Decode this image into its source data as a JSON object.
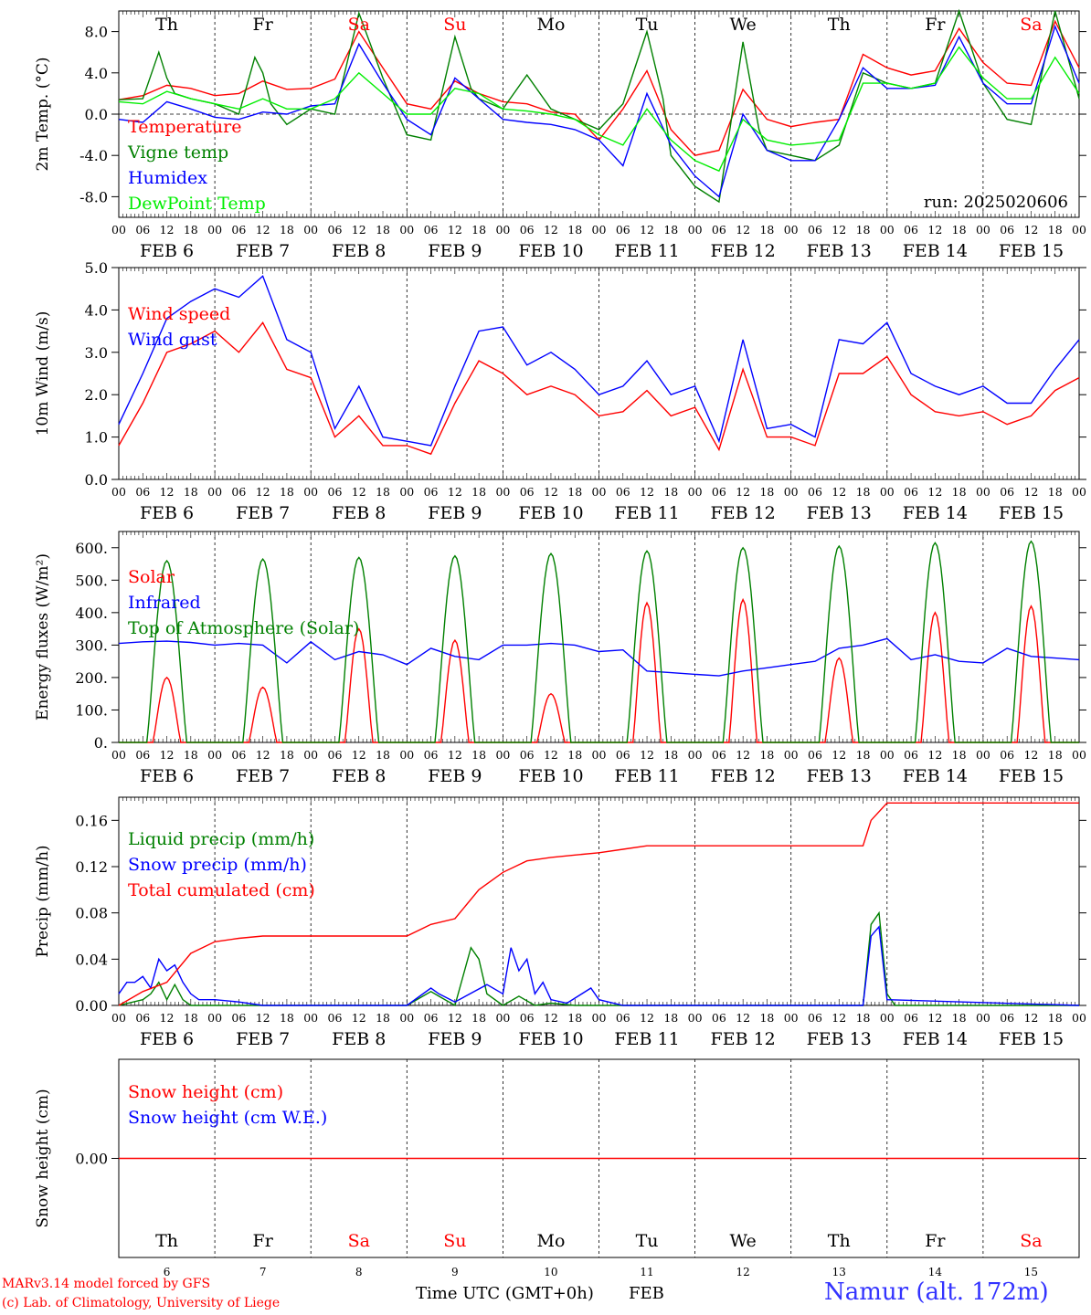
{
  "colors": {
    "red": "#ff0000",
    "blue": "#0000ff",
    "green": "#008000",
    "lightgreen": "#00ee00",
    "black": "#000000"
  },
  "days": [
    {
      "dow": "Th",
      "date": "FEB  6",
      "num": "6",
      "weekend": false
    },
    {
      "dow": "Fr",
      "date": "FEB  7",
      "num": "7",
      "weekend": false
    },
    {
      "dow": "Sa",
      "date": "FEB  8",
      "num": "8",
      "weekend": true
    },
    {
      "dow": "Su",
      "date": "FEB  9",
      "num": "9",
      "weekend": true
    },
    {
      "dow": "Mo",
      "date": "FEB 10",
      "num": "10",
      "weekend": false
    },
    {
      "dow": "Tu",
      "date": "FEB 11",
      "num": "11",
      "weekend": false
    },
    {
      "dow": "We",
      "date": "FEB 12",
      "num": "12",
      "weekend": false
    },
    {
      "dow": "Th",
      "date": "FEB 13",
      "num": "13",
      "weekend": false
    },
    {
      "dow": "Fr",
      "date": "FEB 14",
      "num": "14",
      "weekend": false
    },
    {
      "dow": "Sa",
      "date": "FEB 15",
      "num": "15",
      "weekend": true
    }
  ],
  "hour_ticks": [
    "00",
    "06",
    "12",
    "18"
  ],
  "hour_end": "00",
  "run_label": "run: 2025020606",
  "footer": {
    "model": "MARv3.14 model forced by GFS",
    "lab": "(c) Lab. of Climatology, University of Liege",
    "xlabel": "Time UTC (GMT+0h)",
    "month": "FEB",
    "station": "Namur (alt. 172m)"
  },
  "chart_data": [
    {
      "type": "line",
      "ylabel": "2m Temp. (°C)",
      "ylim": [
        -10,
        10
      ],
      "ticks": [
        8,
        4,
        0,
        -4,
        -8
      ],
      "tick_labels": [
        "8.0",
        "4.0",
        "0.0",
        "-4.0",
        "-8.0"
      ],
      "zero_line": true,
      "series": [
        {
          "name": "Temperature",
          "color": "red",
          "x": [
            0,
            6,
            12,
            18,
            24,
            30,
            36,
            42,
            48,
            54,
            60,
            66,
            72,
            78,
            84,
            90,
            96,
            102,
            108,
            114,
            120,
            126,
            132,
            138,
            144,
            150,
            156,
            162,
            168,
            174,
            180,
            186,
            192,
            198,
            204,
            210,
            216,
            222,
            228,
            234,
            240
          ],
          "y": [
            1.4,
            1.8,
            2.8,
            2.5,
            1.8,
            2.0,
            3.2,
            2.4,
            2.5,
            3.4,
            8.0,
            4.5,
            1.0,
            0.5,
            3.2,
            2.0,
            1.2,
            1.0,
            0.2,
            0.0,
            -2.5,
            0.5,
            4.2,
            -1.5,
            -4.0,
            -3.5,
            2.4,
            -0.5,
            -1.2,
            -0.8,
            -0.5,
            5.8,
            4.5,
            3.8,
            4.2,
            8.3,
            5.0,
            3.0,
            2.8,
            9.0,
            4.5
          ]
        },
        {
          "name": "Vigne temp",
          "color": "green",
          "x": [
            0,
            6,
            10,
            12,
            14,
            18,
            24,
            30,
            34,
            36,
            38,
            42,
            48,
            54,
            60,
            66,
            72,
            78,
            84,
            88,
            90,
            96,
            102,
            108,
            114,
            120,
            126,
            132,
            136,
            138,
            144,
            150,
            156,
            160,
            162,
            168,
            174,
            180,
            186,
            192,
            198,
            204,
            210,
            216,
            222,
            228,
            234,
            240
          ],
          "y": [
            1.4,
            1.5,
            6.0,
            3.5,
            2.0,
            1.5,
            1.0,
            0.0,
            5.5,
            4.0,
            1.0,
            -1.0,
            0.5,
            0.0,
            9.8,
            3.5,
            -2.0,
            -2.5,
            7.5,
            2.5,
            1.5,
            0.5,
            3.8,
            0.5,
            -0.5,
            -1.5,
            1.0,
            8.0,
            1.5,
            -4.0,
            -7.0,
            -8.5,
            7.0,
            -1.5,
            -3.5,
            -4.0,
            -4.5,
            -3.0,
            4.0,
            3.0,
            2.5,
            3.0,
            10.0,
            3.0,
            -0.5,
            -1.0,
            10.0,
            1.5
          ]
        },
        {
          "name": "Humidex",
          "color": "blue",
          "x": [
            0,
            6,
            12,
            18,
            24,
            30,
            36,
            42,
            48,
            54,
            60,
            66,
            72,
            78,
            84,
            90,
            96,
            102,
            108,
            114,
            120,
            126,
            132,
            138,
            144,
            150,
            156,
            162,
            168,
            174,
            180,
            186,
            192,
            198,
            204,
            210,
            216,
            222,
            228,
            234,
            240
          ],
          "y": [
            -0.5,
            -0.8,
            1.2,
            0.5,
            -0.3,
            -0.5,
            0.2,
            0.0,
            0.8,
            1.0,
            6.8,
            3.0,
            -0.5,
            -2.0,
            3.5,
            1.5,
            -0.5,
            -0.8,
            -1.0,
            -1.5,
            -2.5,
            -5.0,
            2.0,
            -3.0,
            -6.0,
            -8.0,
            0.0,
            -3.5,
            -4.5,
            -4.5,
            -0.5,
            4.5,
            2.5,
            2.5,
            2.8,
            7.5,
            3.0,
            1.0,
            1.0,
            8.5,
            3.0
          ]
        },
        {
          "name": "DewPoint Temp",
          "color": "lightgreen",
          "x": [
            0,
            6,
            12,
            18,
            24,
            30,
            36,
            42,
            48,
            54,
            60,
            66,
            72,
            78,
            84,
            90,
            96,
            102,
            108,
            114,
            120,
            126,
            132,
            138,
            144,
            150,
            156,
            162,
            168,
            174,
            180,
            186,
            192,
            198,
            204,
            210,
            216,
            222,
            228,
            234,
            240
          ],
          "y": [
            1.2,
            1.0,
            2.2,
            1.5,
            1.0,
            0.5,
            1.5,
            0.5,
            0.5,
            1.5,
            4.0,
            2.0,
            0.0,
            0.0,
            2.5,
            2.0,
            0.5,
            0.3,
            0.0,
            -0.5,
            -2.0,
            -3.0,
            0.5,
            -2.5,
            -4.5,
            -5.5,
            -0.5,
            -2.5,
            -3.0,
            -2.8,
            -2.5,
            3.0,
            3.0,
            2.5,
            3.0,
            6.5,
            3.5,
            1.5,
            1.5,
            5.5,
            2.0
          ]
        }
      ]
    },
    {
      "type": "line",
      "ylabel": "10m Wind (m/s)",
      "ylim": [
        0,
        5
      ],
      "ticks": [
        0,
        1,
        2,
        3,
        4,
        5
      ],
      "tick_labels": [
        "0.0",
        "1.0",
        "2.0",
        "3.0",
        "4.0",
        "5.0"
      ],
      "series": [
        {
          "name": "Wind speed",
          "color": "red",
          "x": [
            0,
            6,
            12,
            18,
            24,
            30,
            36,
            42,
            48,
            54,
            60,
            66,
            72,
            78,
            84,
            90,
            96,
            102,
            108,
            114,
            120,
            126,
            132,
            138,
            144,
            150,
            156,
            162,
            168,
            174,
            180,
            186,
            192,
            198,
            204,
            210,
            216,
            222,
            228,
            234,
            240
          ],
          "y": [
            0.8,
            1.8,
            3.0,
            3.2,
            3.5,
            3.0,
            3.7,
            2.6,
            2.4,
            1.0,
            1.5,
            0.8,
            0.8,
            0.6,
            1.8,
            2.8,
            2.5,
            2.0,
            2.2,
            2.0,
            1.5,
            1.6,
            2.1,
            1.5,
            1.7,
            0.7,
            2.6,
            1.0,
            1.0,
            0.8,
            2.5,
            2.5,
            2.9,
            2.0,
            1.6,
            1.5,
            1.6,
            1.3,
            1.5,
            2.1,
            2.4
          ]
        },
        {
          "name": "Wind gust",
          "color": "blue",
          "x": [
            0,
            6,
            12,
            18,
            24,
            30,
            36,
            42,
            48,
            54,
            60,
            66,
            72,
            78,
            84,
            90,
            96,
            102,
            108,
            114,
            120,
            126,
            132,
            138,
            144,
            150,
            156,
            162,
            168,
            174,
            180,
            186,
            192,
            198,
            204,
            210,
            216,
            222,
            228,
            234,
            240
          ],
          "y": [
            1.3,
            2.5,
            3.8,
            4.2,
            4.5,
            4.3,
            4.8,
            3.3,
            3.0,
            1.2,
            2.2,
            1.0,
            0.9,
            0.8,
            2.2,
            3.5,
            3.6,
            2.7,
            3.0,
            2.6,
            2.0,
            2.2,
            2.8,
            2.0,
            2.2,
            0.9,
            3.3,
            1.2,
            1.3,
            1.0,
            3.3,
            3.2,
            3.7,
            2.5,
            2.2,
            2.0,
            2.2,
            1.8,
            1.8,
            2.6,
            3.3
          ]
        }
      ]
    },
    {
      "type": "line",
      "ylabel": "Energy fluxes (W/m²)",
      "ylim": [
        0,
        650
      ],
      "ticks": [
        0,
        100,
        200,
        300,
        400,
        500,
        600
      ],
      "tick_labels": [
        "0.",
        "100.",
        "200.",
        "300.",
        "400.",
        "500.",
        "600."
      ],
      "series": [
        {
          "name": "Solar",
          "color": "red",
          "peaks": [
            200,
            170,
            350,
            315,
            150,
            430,
            440,
            260,
            400,
            420
          ],
          "halfwidth": 3.5
        },
        {
          "name": "Infrared",
          "color": "blue",
          "x": [
            0,
            6,
            12,
            18,
            24,
            30,
            36,
            42,
            48,
            54,
            60,
            66,
            72,
            78,
            84,
            90,
            96,
            102,
            108,
            114,
            120,
            126,
            132,
            138,
            144,
            150,
            156,
            162,
            168,
            174,
            180,
            186,
            192,
            198,
            204,
            210,
            216,
            222,
            228,
            234,
            240
          ],
          "y": [
            305,
            310,
            312,
            308,
            300,
            305,
            300,
            245,
            310,
            255,
            280,
            270,
            240,
            290,
            265,
            255,
            300,
            300,
            305,
            300,
            280,
            285,
            220,
            215,
            210,
            205,
            220,
            230,
            240,
            250,
            290,
            300,
            320,
            255,
            270,
            250,
            245,
            290,
            265,
            260,
            255
          ]
        },
        {
          "name": "Top of Atmosphere (Solar)",
          "color": "green",
          "peaks": [
            560,
            565,
            570,
            575,
            582,
            590,
            600,
            605,
            615,
            620
          ],
          "halfwidth": 5
        }
      ]
    },
    {
      "type": "line",
      "ylabel": "Precip (mm/h)",
      "ylim": [
        0,
        0.18
      ],
      "ticks": [
        0,
        0.04,
        0.08,
        0.12,
        0.16
      ],
      "tick_labels": [
        "0.00",
        "0.04",
        "0.08",
        "0.12",
        "0.16"
      ],
      "series": [
        {
          "name": "Liquid precip (mm/h)",
          "color": "green",
          "x": [
            0,
            6,
            8,
            10,
            12,
            14,
            16,
            18,
            24,
            30,
            36,
            42,
            48,
            72,
            78,
            80,
            84,
            88,
            90,
            92,
            96,
            100,
            104,
            108,
            114,
            120,
            186,
            188,
            190,
            192,
            194,
            240
          ],
          "y": [
            0,
            0.005,
            0.01,
            0.02,
            0.005,
            0.018,
            0.005,
            0,
            0,
            0,
            0,
            0,
            0,
            0,
            0.012,
            0.008,
            0,
            0.05,
            0.04,
            0.01,
            0,
            0.008,
            0,
            0.002,
            0,
            0,
            0,
            0.07,
            0.08,
            0.01,
            0,
            0
          ]
        },
        {
          "name": "Snow precip (mm/h)",
          "color": "blue",
          "x": [
            0,
            2,
            4,
            6,
            8,
            10,
            12,
            14,
            16,
            18,
            20,
            24,
            30,
            36,
            42,
            48,
            72,
            78,
            80,
            84,
            92,
            96,
            98,
            100,
            102,
            104,
            106,
            108,
            112,
            118,
            120,
            126,
            130,
            186,
            188,
            190,
            192,
            240
          ],
          "y": [
            0.01,
            0.02,
            0.02,
            0.025,
            0.015,
            0.04,
            0.03,
            0.035,
            0.02,
            0.01,
            0.005,
            0.005,
            0.003,
            0,
            0,
            0,
            0,
            0.015,
            0.01,
            0.003,
            0.018,
            0.01,
            0.05,
            0.03,
            0.04,
            0.01,
            0.02,
            0.005,
            0.002,
            0.015,
            0.005,
            0,
            0,
            0,
            0.06,
            0.068,
            0.005,
            0
          ]
        },
        {
          "name": "Total cumulated (cm)",
          "color": "red",
          "x": [
            0,
            6,
            12,
            18,
            24,
            30,
            36,
            42,
            48,
            54,
            60,
            66,
            72,
            78,
            84,
            90,
            96,
            102,
            108,
            114,
            120,
            126,
            132,
            138,
            144,
            150,
            156,
            162,
            168,
            174,
            180,
            186,
            188,
            192,
            198,
            204,
            210,
            216,
            222,
            228,
            234,
            240
          ],
          "y": [
            0,
            0.012,
            0.02,
            0.045,
            0.055,
            0.058,
            0.06,
            0.06,
            0.06,
            0.06,
            0.06,
            0.06,
            0.06,
            0.07,
            0.075,
            0.1,
            0.115,
            0.125,
            0.128,
            0.13,
            0.132,
            0.135,
            0.138,
            0.138,
            0.138,
            0.138,
            0.138,
            0.138,
            0.138,
            0.138,
            0.138,
            0.138,
            0.16,
            0.175,
            0.175,
            0.175,
            0.175,
            0.175,
            0.175,
            0.175,
            0.175,
            0.175
          ]
        }
      ]
    },
    {
      "type": "line",
      "ylabel": "Snow height (cm)",
      "ylim": [
        -1,
        1
      ],
      "ticks": [
        0
      ],
      "tick_labels": [
        "0.00"
      ],
      "series": [
        {
          "name": "Snow height (cm)",
          "color": "red",
          "x": [
            0,
            240
          ],
          "y": [
            0,
            0
          ]
        },
        {
          "name": "Snow height (cm W.E.)",
          "color": "blue",
          "x": [],
          "y": []
        }
      ]
    }
  ]
}
